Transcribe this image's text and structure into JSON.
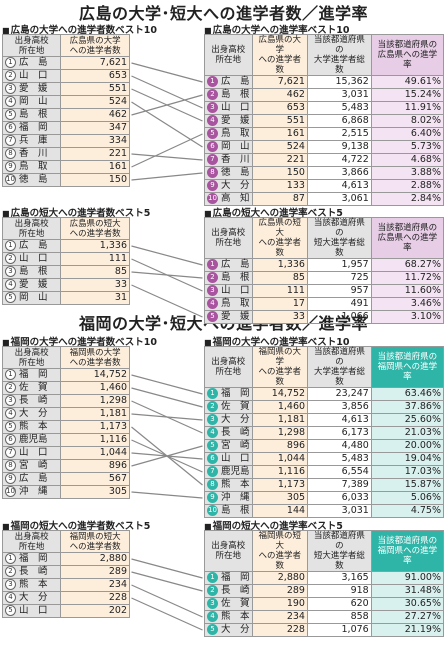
{
  "hiroshima": {
    "title": "広島の大学･短大への進学者数／進学率",
    "univ_count_title": "広島の大学への進学者数ベスト10",
    "univ_rate_title": "広島の大学への進学率ベスト10",
    "jc_count_title": "広島の短大への進学者数ベスト5",
    "jc_rate_title": "広島の短大への進学率ベスト5",
    "h_origin": "出身高校\n所在地",
    "h_univ_count": "広島県の大学\nへの進学者数",
    "h_jc_count": "広島県の短大\nへの進学者数",
    "h_univ_total": "当該都道府県の\n大学進学者総数",
    "h_jc_total": "当該都道府県の\n短大進学者総数",
    "h_univ_rate": "当該都道府県の\n広島県への進学率",
    "h_jc_rate": "当該都道府県の\n広島県への進学率",
    "univ_count": [
      {
        "name": "広　島",
        "v": "7,621"
      },
      {
        "name": "山　口",
        "v": "653"
      },
      {
        "name": "愛　媛",
        "v": "551"
      },
      {
        "name": "岡　山",
        "v": "524"
      },
      {
        "name": "島　根",
        "v": "462"
      },
      {
        "name": "福　岡",
        "v": "347"
      },
      {
        "name": "兵　庫",
        "v": "334"
      },
      {
        "name": "香　川",
        "v": "221"
      },
      {
        "name": "鳥　取",
        "v": "161"
      },
      {
        "name": "徳　島",
        "v": "150"
      }
    ],
    "univ_rate": [
      {
        "name": "広　島",
        "c": "7,621",
        "t": "15,362",
        "r": "49.61%"
      },
      {
        "name": "島　根",
        "c": "462",
        "t": "3,031",
        "r": "15.24%"
      },
      {
        "name": "山　口",
        "c": "653",
        "t": "5,483",
        "r": "11.91%"
      },
      {
        "name": "愛　媛",
        "c": "551",
        "t": "6,868",
        "r": "8.02%"
      },
      {
        "name": "鳥　取",
        "c": "161",
        "t": "2,515",
        "r": "6.40%"
      },
      {
        "name": "岡　山",
        "c": "524",
        "t": "9,138",
        "r": "5.73%"
      },
      {
        "name": "香　川",
        "c": "221",
        "t": "4,722",
        "r": "4.68%"
      },
      {
        "name": "徳　島",
        "c": "150",
        "t": "3,866",
        "r": "3.88%"
      },
      {
        "name": "大　分",
        "c": "133",
        "t": "4,613",
        "r": "2.88%"
      },
      {
        "name": "高　知",
        "c": "87",
        "t": "3,061",
        "r": "2.84%"
      }
    ],
    "jc_count": [
      {
        "name": "広　島",
        "v": "1,336"
      },
      {
        "name": "山　口",
        "v": "111"
      },
      {
        "name": "島　根",
        "v": "85"
      },
      {
        "name": "愛　媛",
        "v": "33"
      },
      {
        "name": "岡　山",
        "v": "31"
      }
    ],
    "jc_rate": [
      {
        "name": "広　島",
        "c": "1,336",
        "t": "1,957",
        "r": "68.27%"
      },
      {
        "name": "島　根",
        "c": "85",
        "t": "725",
        "r": "11.72%"
      },
      {
        "name": "山　口",
        "c": "111",
        "t": "957",
        "r": "11.60%"
      },
      {
        "name": "鳥　取",
        "c": "17",
        "t": "491",
        "r": "3.46%"
      },
      {
        "name": "愛　媛",
        "c": "33",
        "t": "1,066",
        "r": "3.10%"
      }
    ]
  },
  "fukuoka": {
    "title": "福岡の大学･短大への進学者数／進学率",
    "univ_count_title": "福岡の大学への進学者数ベスト10",
    "univ_rate_title": "福岡の大学への進学率ベスト10",
    "jc_count_title": "福岡の短大への進学者数ベスト5",
    "jc_rate_title": "福岡の短大への進学率ベスト5",
    "h_origin": "出身高校\n所在地",
    "h_univ_count": "福岡県の大学\nへの進学者数",
    "h_jc_count": "福岡県の短大\nへの進学者数",
    "h_univ_total": "当該都道府県の\n大学進学者総数",
    "h_jc_total": "当該都道府県の\n短大進学者総数",
    "h_univ_rate": "当該都道府県の\n福岡県への進学率",
    "h_jc_rate": "当該都道府県の\n福岡県への進学率",
    "univ_count": [
      {
        "name": "福　岡",
        "v": "14,752"
      },
      {
        "name": "佐　賀",
        "v": "1,460"
      },
      {
        "name": "長　崎",
        "v": "1,298"
      },
      {
        "name": "大　分",
        "v": "1,181"
      },
      {
        "name": "熊　本",
        "v": "1,173"
      },
      {
        "name": "鹿児島",
        "v": "1,116"
      },
      {
        "name": "山　口",
        "v": "1,044"
      },
      {
        "name": "宮　崎",
        "v": "896"
      },
      {
        "name": "広　島",
        "v": "567"
      },
      {
        "name": "沖　縄",
        "v": "305"
      }
    ],
    "univ_rate": [
      {
        "name": "福　岡",
        "c": "14,752",
        "t": "23,247",
        "r": "63.46%"
      },
      {
        "name": "佐　賀",
        "c": "1,460",
        "t": "3,856",
        "r": "37.86%"
      },
      {
        "name": "大　分",
        "c": "1,181",
        "t": "4,613",
        "r": "25.60%"
      },
      {
        "name": "長　崎",
        "c": "1,298",
        "t": "6,173",
        "r": "21.03%"
      },
      {
        "name": "宮　崎",
        "c": "896",
        "t": "4,480",
        "r": "20.00%"
      },
      {
        "name": "山　口",
        "c": "1,044",
        "t": "5,483",
        "r": "19.04%"
      },
      {
        "name": "鹿児島",
        "c": "1,116",
        "t": "6,554",
        "r": "17.03%"
      },
      {
        "name": "熊　本",
        "c": "1,173",
        "t": "7,389",
        "r": "15.87%"
      },
      {
        "name": "沖　縄",
        "c": "305",
        "t": "6,033",
        "r": "5.06%"
      },
      {
        "name": "島　根",
        "c": "144",
        "t": "3,031",
        "r": "4.75%"
      }
    ],
    "jc_count": [
      {
        "name": "福　岡",
        "v": "2,880"
      },
      {
        "name": "長　崎",
        "v": "289"
      },
      {
        "name": "熊　本",
        "v": "234"
      },
      {
        "name": "大　分",
        "v": "228"
      },
      {
        "name": "山　口",
        "v": "202"
      }
    ],
    "jc_rate": [
      {
        "name": "福　岡",
        "c": "2,880",
        "t": "3,165",
        "r": "91.00%"
      },
      {
        "name": "長　崎",
        "c": "289",
        "t": "918",
        "r": "31.48%"
      },
      {
        "name": "佐　賀",
        "c": "190",
        "t": "620",
        "r": "30.65%"
      },
      {
        "name": "熊　本",
        "c": "234",
        "t": "858",
        "r": "27.27%"
      },
      {
        "name": "大　分",
        "c": "228",
        "t": "1,076",
        "r": "21.19%"
      }
    ]
  }
}
